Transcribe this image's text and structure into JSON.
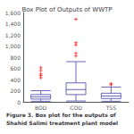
{
  "chart_data": {
    "type": "boxplot",
    "title": "Box Plot of Outputs of WWTP",
    "categories": [
      "BOD",
      "COD",
      "TSS"
    ],
    "series": [
      {
        "type": "boxplot",
        "color": "#6666bb",
        "values": [
          [
            10,
            50,
            90,
            130,
            200
          ],
          [
            15,
            130,
            220,
            340,
            720
          ],
          [
            10,
            60,
            105,
            155,
            265
          ]
        ]
      },
      {
        "type": "scatter",
        "marker": "+",
        "color": "#ff0000",
        "values": [
          [
            430,
            470,
            500,
            560,
            610
          ],
          [
            820,
            870,
            1020,
            1060,
            1480
          ],
          [
            305,
            325
          ]
        ]
      }
    ],
    "ylim": [
      0,
      1600
    ],
    "yticks": [
      0,
      200,
      400,
      600,
      800,
      1000,
      1200,
      1400,
      1600
    ],
    "grid": false,
    "annotations": [
      "Figure 3. Box plot for the outputs of",
      "Shahid Salimi treatment plant model"
    ]
  }
}
